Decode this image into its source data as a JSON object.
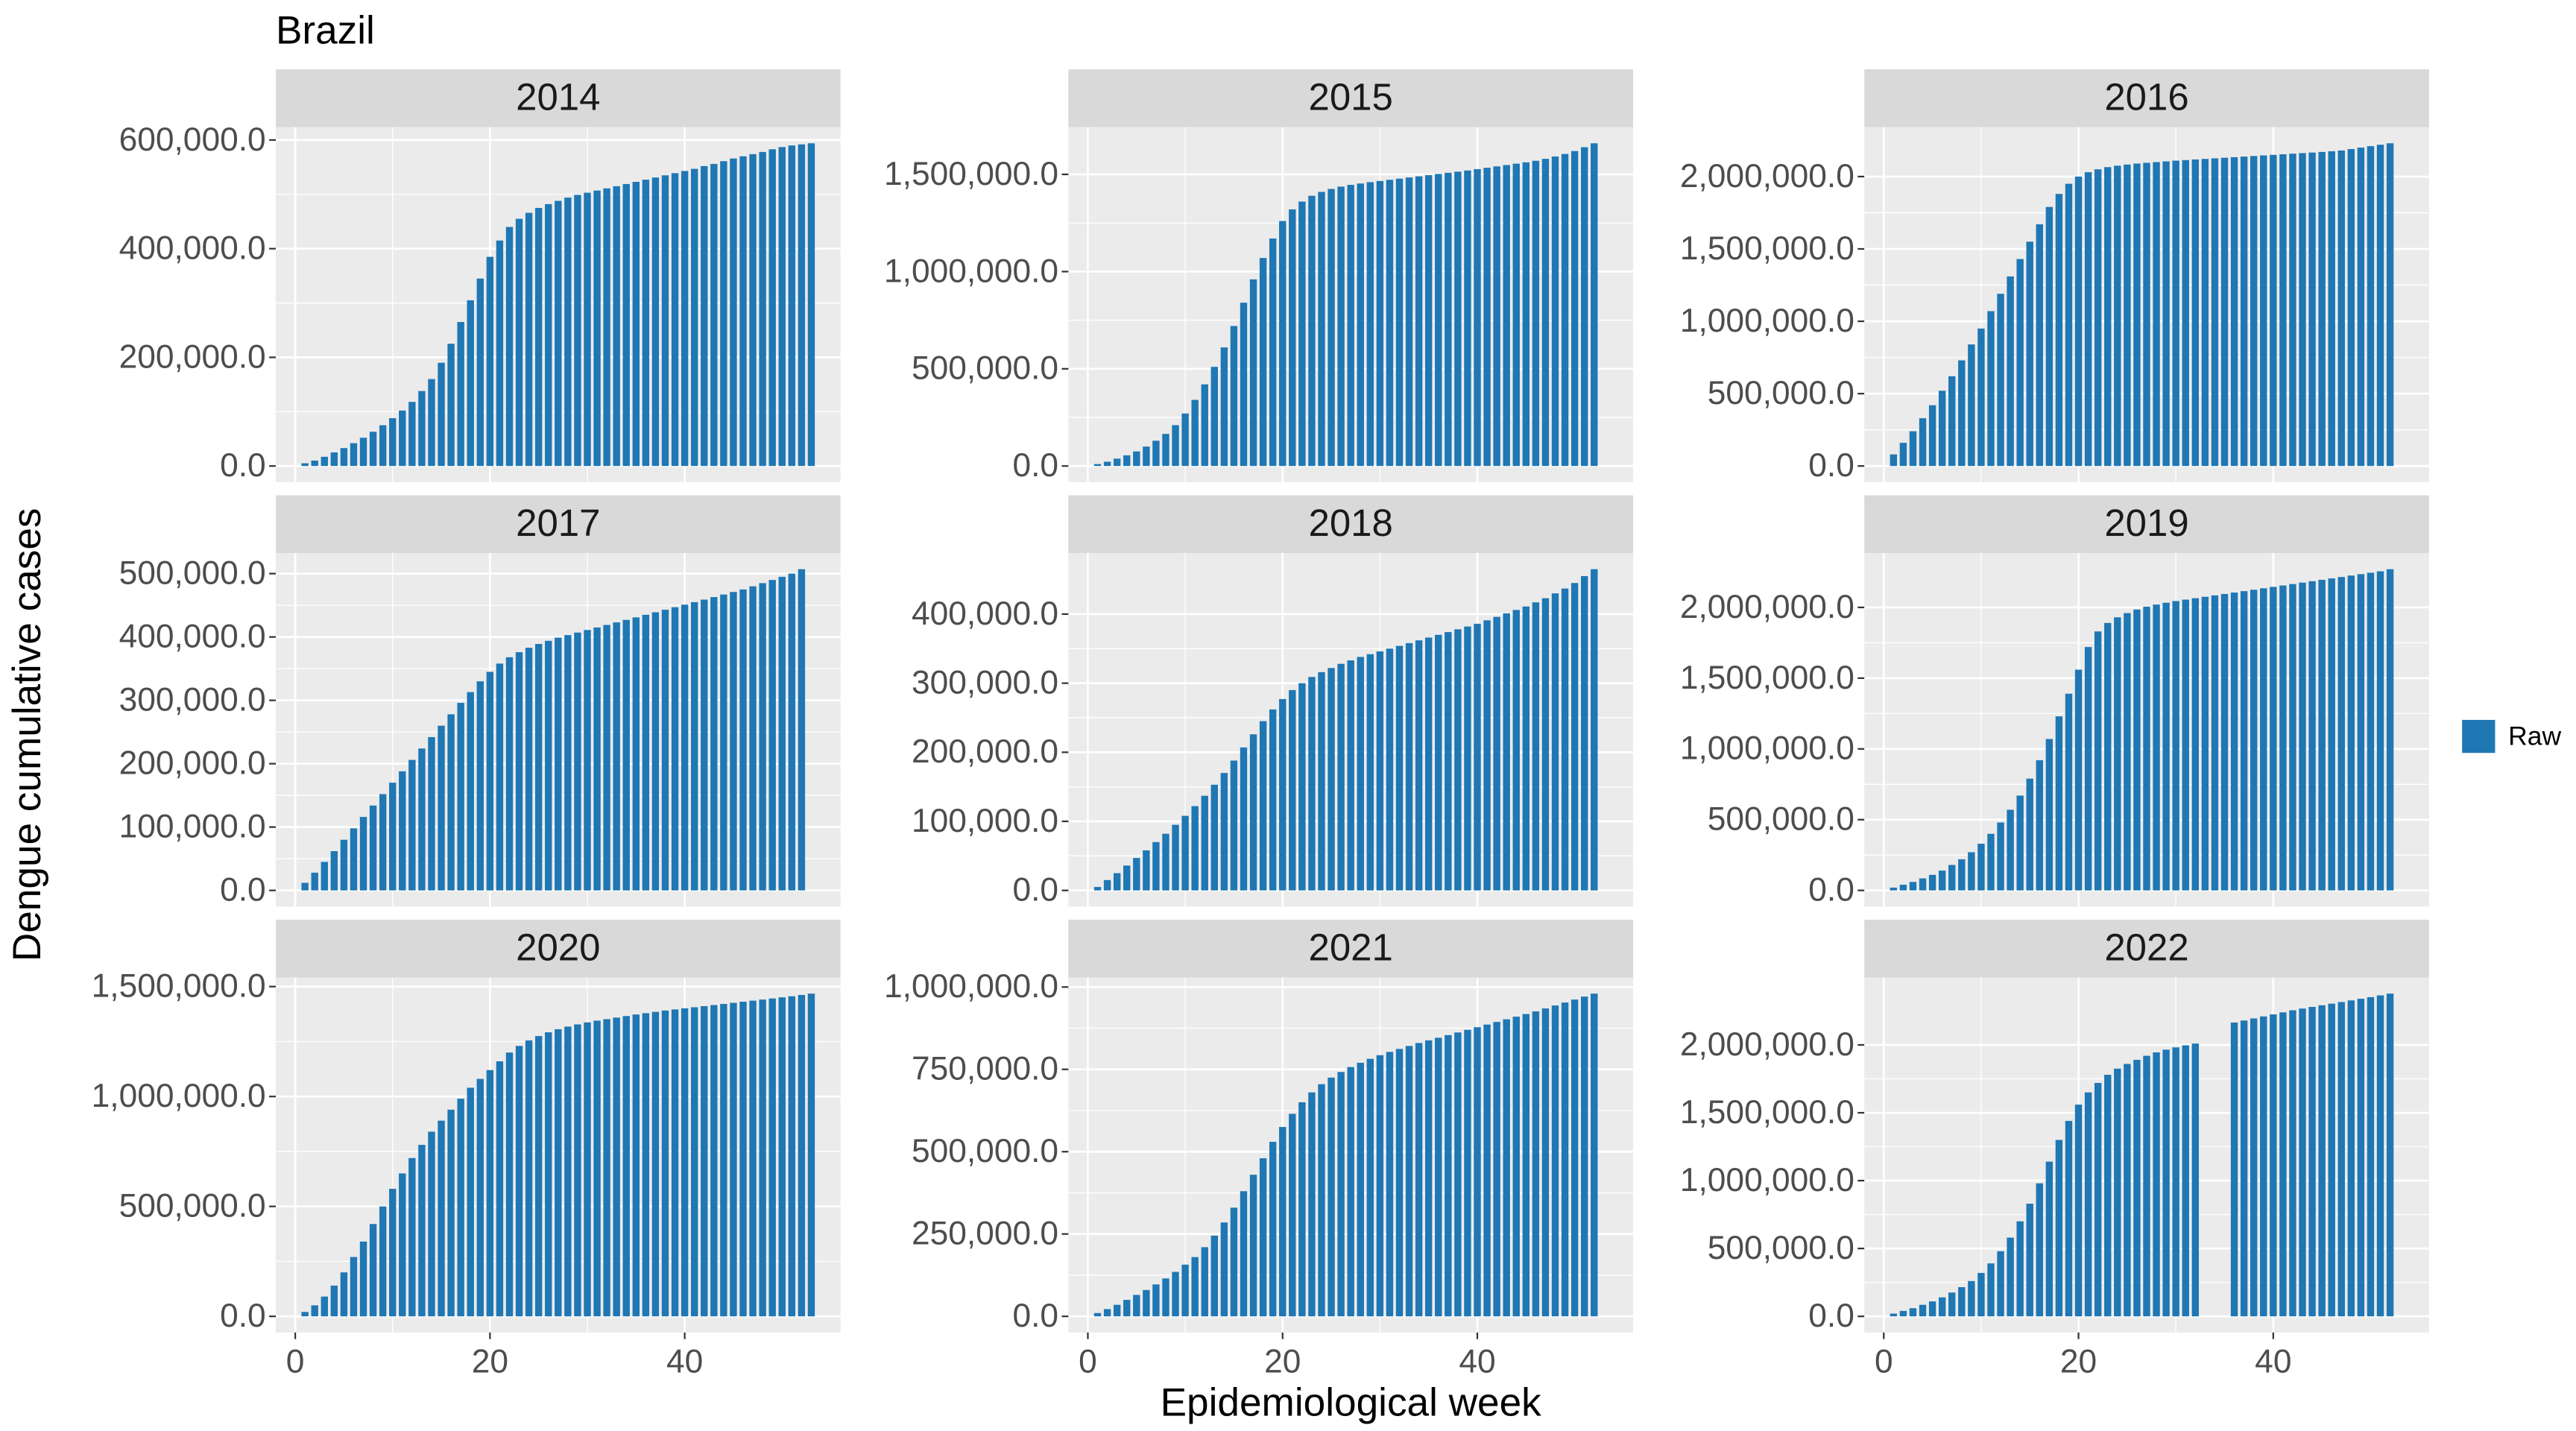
{
  "title": "Brazil",
  "x_label": "Epidemiological week",
  "y_label": "Dengue cumulative cases",
  "legend": {
    "name": "Raw",
    "color": "#1f77b4"
  },
  "chart_data": [
    {
      "type": "bar",
      "title": "2014",
      "xlim": [
        -2,
        56
      ],
      "xticks": [
        0,
        20,
        40
      ],
      "ylim": [
        -29700,
        623700
      ],
      "yticks": [
        {
          "value": 0,
          "label": "0.0"
        },
        {
          "value": 200000,
          "label": "200,000.0"
        },
        {
          "value": 400000,
          "label": "400,000.0"
        },
        {
          "value": 600000,
          "label": "600,000.0"
        }
      ],
      "x": [
        1,
        2,
        3,
        4,
        5,
        6,
        7,
        8,
        9,
        10,
        11,
        12,
        13,
        14,
        15,
        16,
        17,
        18,
        19,
        20,
        21,
        22,
        23,
        24,
        25,
        26,
        27,
        28,
        29,
        30,
        31,
        32,
        33,
        34,
        35,
        36,
        37,
        38,
        39,
        40,
        41,
        42,
        43,
        44,
        45,
        46,
        47,
        48,
        49,
        50,
        51,
        52,
        53
      ],
      "values": [
        5000,
        10000,
        17000,
        25000,
        33000,
        42000,
        52000,
        63000,
        75000,
        88000,
        102000,
        118000,
        138000,
        160000,
        190000,
        225000,
        265000,
        305000,
        345000,
        385000,
        415000,
        440000,
        455000,
        466000,
        475000,
        482000,
        488000,
        494000,
        499000,
        503000,
        507000,
        511000,
        515000,
        519000,
        523000,
        527000,
        531000,
        535000,
        539000,
        543000,
        547000,
        552000,
        556000,
        561000,
        566000,
        570000,
        574000,
        578000,
        583000,
        587000,
        590000,
        592000,
        594000
      ]
    },
    {
      "type": "bar",
      "title": "2015",
      "xlim": [
        -2,
        56
      ],
      "xticks": [
        0,
        20,
        40
      ],
      "ylim": [
        -83000,
        1743000
      ],
      "yticks": [
        {
          "value": 0,
          "label": "0.0"
        },
        {
          "value": 500000,
          "label": "500,000.0"
        },
        {
          "value": 1000000,
          "label": "1,000,000.0"
        },
        {
          "value": 1500000,
          "label": "1,500,000.0"
        }
      ],
      "x": [
        1,
        2,
        3,
        4,
        5,
        6,
        7,
        8,
        9,
        10,
        11,
        12,
        13,
        14,
        15,
        16,
        17,
        18,
        19,
        20,
        21,
        22,
        23,
        24,
        25,
        26,
        27,
        28,
        29,
        30,
        31,
        32,
        33,
        34,
        35,
        36,
        37,
        38,
        39,
        40,
        41,
        42,
        43,
        44,
        45,
        46,
        47,
        48,
        49,
        50,
        51,
        52
      ],
      "values": [
        10000,
        22000,
        38000,
        55000,
        75000,
        100000,
        130000,
        165000,
        210000,
        270000,
        340000,
        420000,
        510000,
        610000,
        720000,
        840000,
        960000,
        1070000,
        1170000,
        1260000,
        1320000,
        1360000,
        1390000,
        1410000,
        1425000,
        1437000,
        1446000,
        1453000,
        1460000,
        1466000,
        1472000,
        1478000,
        1484000,
        1490000,
        1496000,
        1502000,
        1508000,
        1514000,
        1520000,
        1527000,
        1534000,
        1541000,
        1548000,
        1555000,
        1562000,
        1570000,
        1580000,
        1592000,
        1605000,
        1620000,
        1640000,
        1660000
      ]
    },
    {
      "type": "bar",
      "title": "2016",
      "xlim": [
        -2,
        56
      ],
      "xticks": [
        0,
        20,
        40
      ],
      "ylim": [
        -111500,
        2341500
      ],
      "yticks": [
        {
          "value": 0,
          "label": "0.0"
        },
        {
          "value": 500000,
          "label": "500,000.0"
        },
        {
          "value": 1000000,
          "label": "1,000,000.0"
        },
        {
          "value": 1500000,
          "label": "1,500,000.0"
        },
        {
          "value": 2000000,
          "label": "2,000,000.0"
        }
      ],
      "x": [
        1,
        2,
        3,
        4,
        5,
        6,
        7,
        8,
        9,
        10,
        11,
        12,
        13,
        14,
        15,
        16,
        17,
        18,
        19,
        20,
        21,
        22,
        23,
        24,
        25,
        26,
        27,
        28,
        29,
        30,
        31,
        32,
        33,
        34,
        35,
        36,
        37,
        38,
        39,
        40,
        41,
        42,
        43,
        44,
        45,
        46,
        47,
        48,
        49,
        50,
        51,
        52
      ],
      "values": [
        80000,
        160000,
        240000,
        330000,
        420000,
        520000,
        620000,
        730000,
        840000,
        950000,
        1070000,
        1190000,
        1310000,
        1430000,
        1550000,
        1670000,
        1790000,
        1880000,
        1950000,
        2000000,
        2030000,
        2050000,
        2065000,
        2075000,
        2083000,
        2090000,
        2095000,
        2100000,
        2105000,
        2110000,
        2114000,
        2118000,
        2122000,
        2126000,
        2130000,
        2134000,
        2138000,
        2142000,
        2146000,
        2150000,
        2154000,
        2158000,
        2162000,
        2166000,
        2170000,
        2175000,
        2180000,
        2190000,
        2200000,
        2210000,
        2220000,
        2230000
      ]
    },
    {
      "type": "bar",
      "title": "2017",
      "xlim": [
        -2,
        56
      ],
      "xticks": [
        0,
        20,
        40
      ],
      "ylim": [
        -25350,
        532350
      ],
      "yticks": [
        {
          "value": 0,
          "label": "0.0"
        },
        {
          "value": 100000,
          "label": "100,000.0"
        },
        {
          "value": 200000,
          "label": "200,000.0"
        },
        {
          "value": 300000,
          "label": "300,000.0"
        },
        {
          "value": 400000,
          "label": "400,000.0"
        },
        {
          "value": 500000,
          "label": "500,000.0"
        }
      ],
      "x": [
        1,
        2,
        3,
        4,
        5,
        6,
        7,
        8,
        9,
        10,
        11,
        12,
        13,
        14,
        15,
        16,
        17,
        18,
        19,
        20,
        21,
        22,
        23,
        24,
        25,
        26,
        27,
        28,
        29,
        30,
        31,
        32,
        33,
        34,
        35,
        36,
        37,
        38,
        39,
        40,
        41,
        42,
        43,
        44,
        45,
        46,
        47,
        48,
        49,
        50,
        51,
        52
      ],
      "values": [
        12000,
        28000,
        45000,
        62000,
        80000,
        98000,
        116000,
        134000,
        152000,
        170000,
        188000,
        206000,
        224000,
        242000,
        260000,
        278000,
        296000,
        313000,
        330000,
        345000,
        358000,
        368000,
        376000,
        383000,
        389000,
        394000,
        399000,
        403000,
        407000,
        411000,
        415000,
        419000,
        423000,
        427000,
        431000,
        435000,
        439000,
        443000,
        447000,
        451000,
        455000,
        459000,
        463000,
        467000,
        471000,
        475000,
        480000,
        485000,
        490000,
        495000,
        500000,
        507000
      ]
    },
    {
      "type": "bar",
      "title": "2018",
      "xlim": [
        -2,
        56
      ],
      "xticks": [
        0,
        20,
        40
      ],
      "ylim": [
        -23250,
        488250
      ],
      "yticks": [
        {
          "value": 0,
          "label": "0.0"
        },
        {
          "value": 100000,
          "label": "100,000.0"
        },
        {
          "value": 200000,
          "label": "200,000.0"
        },
        {
          "value": 300000,
          "label": "300,000.0"
        },
        {
          "value": 400000,
          "label": "400,000.0"
        }
      ],
      "x": [
        1,
        2,
        3,
        4,
        5,
        6,
        7,
        8,
        9,
        10,
        11,
        12,
        13,
        14,
        15,
        16,
        17,
        18,
        19,
        20,
        21,
        22,
        23,
        24,
        25,
        26,
        27,
        28,
        29,
        30,
        31,
        32,
        33,
        34,
        35,
        36,
        37,
        38,
        39,
        40,
        41,
        42,
        43,
        44,
        45,
        46,
        47,
        48,
        49,
        50,
        51,
        52
      ],
      "values": [
        5000,
        15000,
        25000,
        36000,
        47000,
        58000,
        70000,
        82000,
        95000,
        108000,
        122000,
        137000,
        153000,
        170000,
        188000,
        207000,
        226000,
        245000,
        262000,
        277000,
        290000,
        300000,
        309000,
        316000,
        322000,
        328000,
        333000,
        338000,
        342000,
        346000,
        350000,
        354000,
        358000,
        362000,
        366000,
        370000,
        374000,
        378000,
        382000,
        386000,
        391000,
        396000,
        401000,
        406000,
        411000,
        417000,
        423000,
        430000,
        437000,
        445000,
        455000,
        465000
      ]
    },
    {
      "type": "bar",
      "title": "2019",
      "xlim": [
        -2,
        56
      ],
      "xticks": [
        0,
        20,
        40
      ],
      "ylim": [
        -113500,
        2383500
      ],
      "yticks": [
        {
          "value": 0,
          "label": "0.0"
        },
        {
          "value": 500000,
          "label": "500,000.0"
        },
        {
          "value": 1000000,
          "label": "1,000,000.0"
        },
        {
          "value": 1500000,
          "label": "1,500,000.0"
        },
        {
          "value": 2000000,
          "label": "2,000,000.0"
        }
      ],
      "x": [
        1,
        2,
        3,
        4,
        5,
        6,
        7,
        8,
        9,
        10,
        11,
        12,
        13,
        14,
        15,
        16,
        17,
        18,
        19,
        20,
        21,
        22,
        23,
        24,
        25,
        26,
        27,
        28,
        29,
        30,
        31,
        32,
        33,
        34,
        35,
        36,
        37,
        38,
        39,
        40,
        41,
        42,
        43,
        44,
        45,
        46,
        47,
        48,
        49,
        50,
        51,
        52
      ],
      "values": [
        20000,
        40000,
        60000,
        85000,
        110000,
        140000,
        180000,
        220000,
        270000,
        330000,
        400000,
        480000,
        570000,
        670000,
        790000,
        920000,
        1070000,
        1230000,
        1390000,
        1560000,
        1720000,
        1830000,
        1890000,
        1930000,
        1960000,
        1985000,
        2005000,
        2020000,
        2033000,
        2045000,
        2055000,
        2065000,
        2075000,
        2085000,
        2095000,
        2105000,
        2115000,
        2125000,
        2135000,
        2145000,
        2155000,
        2165000,
        2175000,
        2185000,
        2195000,
        2205000,
        2215000,
        2225000,
        2235000,
        2245000,
        2255000,
        2270000
      ]
    },
    {
      "type": "bar",
      "title": "2020",
      "xlim": [
        -2,
        56
      ],
      "xticks": [
        0,
        20,
        40
      ],
      "ylim": [
        -73400,
        1541400
      ],
      "yticks": [
        {
          "value": 0,
          "label": "0.0"
        },
        {
          "value": 500000,
          "label": "500,000.0"
        },
        {
          "value": 1000000,
          "label": "1,000,000.0"
        },
        {
          "value": 1500000,
          "label": "1,500,000.0"
        }
      ],
      "x": [
        1,
        2,
        3,
        4,
        5,
        6,
        7,
        8,
        9,
        10,
        11,
        12,
        13,
        14,
        15,
        16,
        17,
        18,
        19,
        20,
        21,
        22,
        23,
        24,
        25,
        26,
        27,
        28,
        29,
        30,
        31,
        32,
        33,
        34,
        35,
        36,
        37,
        38,
        39,
        40,
        41,
        42,
        43,
        44,
        45,
        46,
        47,
        48,
        49,
        50,
        51,
        52,
        53
      ],
      "values": [
        20000,
        50000,
        90000,
        140000,
        200000,
        270000,
        340000,
        420000,
        500000,
        580000,
        650000,
        720000,
        780000,
        840000,
        890000,
        940000,
        990000,
        1040000,
        1080000,
        1120000,
        1160000,
        1200000,
        1230000,
        1255000,
        1275000,
        1292000,
        1306000,
        1318000,
        1328000,
        1337000,
        1345000,
        1352000,
        1359000,
        1366000,
        1373000,
        1379000,
        1385000,
        1391000,
        1396000,
        1401000,
        1406000,
        1411000,
        1416000,
        1421000,
        1426000,
        1431000,
        1436000,
        1441000,
        1446000,
        1451000,
        1456000,
        1462000,
        1468000
      ]
    },
    {
      "type": "bar",
      "title": "2021",
      "xlim": [
        -2,
        56
      ],
      "xticks": [
        0,
        20,
        40
      ],
      "ylim": [
        -49000,
        1029000
      ],
      "yticks": [
        {
          "value": 0,
          "label": "0.0"
        },
        {
          "value": 250000,
          "label": "250,000.0"
        },
        {
          "value": 500000,
          "label": "500,000.0"
        },
        {
          "value": 750000,
          "label": "750,000.0"
        },
        {
          "value": 1000000,
          "label": "1,000,000.0"
        }
      ],
      "x": [
        1,
        2,
        3,
        4,
        5,
        6,
        7,
        8,
        9,
        10,
        11,
        12,
        13,
        14,
        15,
        16,
        17,
        18,
        19,
        20,
        21,
        22,
        23,
        24,
        25,
        26,
        27,
        28,
        29,
        30,
        31,
        32,
        33,
        34,
        35,
        36,
        37,
        38,
        39,
        40,
        41,
        42,
        43,
        44,
        45,
        46,
        47,
        48,
        49,
        50,
        51,
        52
      ],
      "values": [
        10000,
        22000,
        35000,
        50000,
        65000,
        80000,
        97000,
        115000,
        135000,
        157000,
        180000,
        210000,
        245000,
        285000,
        330000,
        380000,
        430000,
        480000,
        530000,
        575000,
        615000,
        650000,
        680000,
        705000,
        725000,
        742000,
        757000,
        770000,
        782000,
        793000,
        803000,
        812000,
        821000,
        830000,
        838000,
        846000,
        854000,
        862000,
        870000,
        878000,
        886000,
        894000,
        902000,
        910000,
        918000,
        926000,
        935000,
        944000,
        953000,
        962000,
        971000,
        980000
      ]
    },
    {
      "type": "bar",
      "title": "2022",
      "xlim": [
        -2,
        56
      ],
      "xticks": [
        0,
        20,
        40
      ],
      "ylim": [
        -118900,
        2496900
      ],
      "yticks": [
        {
          "value": 0,
          "label": "0.0"
        },
        {
          "value": 500000,
          "label": "500,000.0"
        },
        {
          "value": 1000000,
          "label": "1,000,000.0"
        },
        {
          "value": 1500000,
          "label": "1,500,000.0"
        },
        {
          "value": 2000000,
          "label": "2,000,000.0"
        }
      ],
      "x": [
        1,
        2,
        3,
        4,
        5,
        6,
        7,
        8,
        9,
        10,
        11,
        12,
        13,
        14,
        15,
        16,
        17,
        18,
        19,
        20,
        21,
        22,
        23,
        24,
        25,
        26,
        27,
        28,
        29,
        30,
        31,
        32,
        33,
        34,
        35,
        36,
        37,
        38,
        39,
        40,
        41,
        42,
        43,
        44,
        45,
        46,
        47,
        48,
        49,
        50,
        51,
        52
      ],
      "values": [
        20000,
        40000,
        60000,
        85000,
        110000,
        140000,
        175000,
        215000,
        260000,
        320000,
        390000,
        480000,
        580000,
        700000,
        830000,
        980000,
        1140000,
        1300000,
        1440000,
        1560000,
        1650000,
        1720000,
        1780000,
        1825000,
        1860000,
        1890000,
        1920000,
        1945000,
        1965000,
        1982000,
        1997000,
        2010000,
        null,
        null,
        null,
        2165000,
        2180000,
        2195000,
        2210000,
        2225000,
        2240000,
        2255000,
        2268000,
        2280000,
        2292000,
        2304000,
        2316000,
        2328000,
        2340000,
        2352000,
        2365000,
        2378000
      ]
    }
  ]
}
